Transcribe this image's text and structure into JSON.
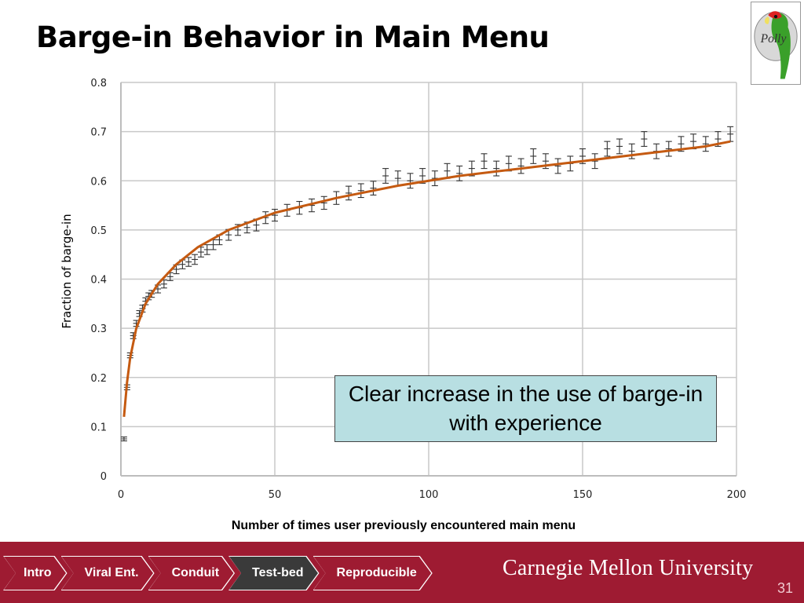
{
  "slide": {
    "title": "Barge-in Behavior in Main Menu",
    "page_number": "31",
    "logo_text": "Polly",
    "callout": "Clear increase in the use of barge-in with experience"
  },
  "nav": {
    "items": [
      {
        "label": "Intro",
        "active": false
      },
      {
        "label": "Viral Ent.",
        "active": false
      },
      {
        "label": "Conduit",
        "active": false
      },
      {
        "label": "Test-bed",
        "active": true
      },
      {
        "label": "Reproducible",
        "active": false
      }
    ],
    "university": "Carnegie Mellon University"
  },
  "colors": {
    "accent": "#9e1b32",
    "active_tab": "#3a3a3a",
    "fit_line": "#c55a11",
    "callout_bg": "#b8dfe2"
  },
  "chart_data": {
    "type": "scatter",
    "title": "",
    "xlabel": "Number of times user previously encountered main menu",
    "ylabel": "Fraction of barge-in",
    "xlim": [
      0,
      200
    ],
    "ylim": [
      0,
      0.8
    ],
    "xticks": [
      "0",
      "50",
      "100",
      "150",
      "200"
    ],
    "yticks": [
      "0",
      "0.1",
      "0.2",
      "0.3",
      "0.4",
      "0.5",
      "0.6",
      "0.7",
      "0.8"
    ],
    "grid": true,
    "series": [
      {
        "kind": "points_with_error_bars",
        "x": [
          1,
          2,
          3,
          4,
          5,
          6,
          7,
          8,
          9,
          10,
          12,
          14,
          16,
          18,
          20,
          22,
          24,
          26,
          28,
          30,
          32,
          35,
          38,
          41,
          44,
          47,
          50,
          54,
          58,
          62,
          66,
          70,
          74,
          78,
          82,
          86,
          90,
          94,
          98,
          102,
          106,
          110,
          114,
          118,
          122,
          126,
          130,
          134,
          138,
          142,
          146,
          150,
          154,
          158,
          162,
          166,
          170,
          174,
          178,
          182,
          186,
          190,
          194,
          198
        ],
        "y": [
          0.075,
          0.18,
          0.245,
          0.285,
          0.31,
          0.33,
          0.34,
          0.355,
          0.365,
          0.37,
          0.38,
          0.39,
          0.405,
          0.42,
          0.43,
          0.435,
          0.44,
          0.455,
          0.46,
          0.47,
          0.48,
          0.49,
          0.5,
          0.505,
          0.51,
          0.525,
          0.53,
          0.54,
          0.545,
          0.55,
          0.555,
          0.565,
          0.575,
          0.58,
          0.585,
          0.61,
          0.605,
          0.6,
          0.61,
          0.605,
          0.62,
          0.615,
          0.625,
          0.64,
          0.625,
          0.635,
          0.63,
          0.65,
          0.64,
          0.63,
          0.635,
          0.65,
          0.64,
          0.665,
          0.67,
          0.66,
          0.685,
          0.66,
          0.665,
          0.675,
          0.68,
          0.675,
          0.685,
          0.695
        ],
        "error": [
          0.004,
          0.005,
          0.005,
          0.006,
          0.006,
          0.006,
          0.007,
          0.007,
          0.007,
          0.007,
          0.008,
          0.008,
          0.008,
          0.009,
          0.009,
          0.009,
          0.01,
          0.01,
          0.01,
          0.01,
          0.01,
          0.011,
          0.011,
          0.011,
          0.012,
          0.012,
          0.012,
          0.012,
          0.013,
          0.013,
          0.013,
          0.013,
          0.014,
          0.014,
          0.014,
          0.015,
          0.015,
          0.015,
          0.015,
          0.015,
          0.015,
          0.015,
          0.015,
          0.015,
          0.015,
          0.015,
          0.015,
          0.015,
          0.015,
          0.015,
          0.015,
          0.015,
          0.015,
          0.015,
          0.015,
          0.015,
          0.015,
          0.015,
          0.015,
          0.015,
          0.015,
          0.015,
          0.015,
          0.015
        ]
      },
      {
        "kind": "fit_line",
        "x": [
          1,
          2,
          3,
          5,
          8,
          12,
          18,
          25,
          35,
          50,
          70,
          90,
          110,
          130,
          150,
          170,
          190,
          198
        ],
        "y": [
          0.12,
          0.19,
          0.24,
          0.3,
          0.35,
          0.39,
          0.43,
          0.465,
          0.5,
          0.535,
          0.565,
          0.59,
          0.61,
          0.625,
          0.64,
          0.655,
          0.67,
          0.68
        ]
      }
    ]
  }
}
